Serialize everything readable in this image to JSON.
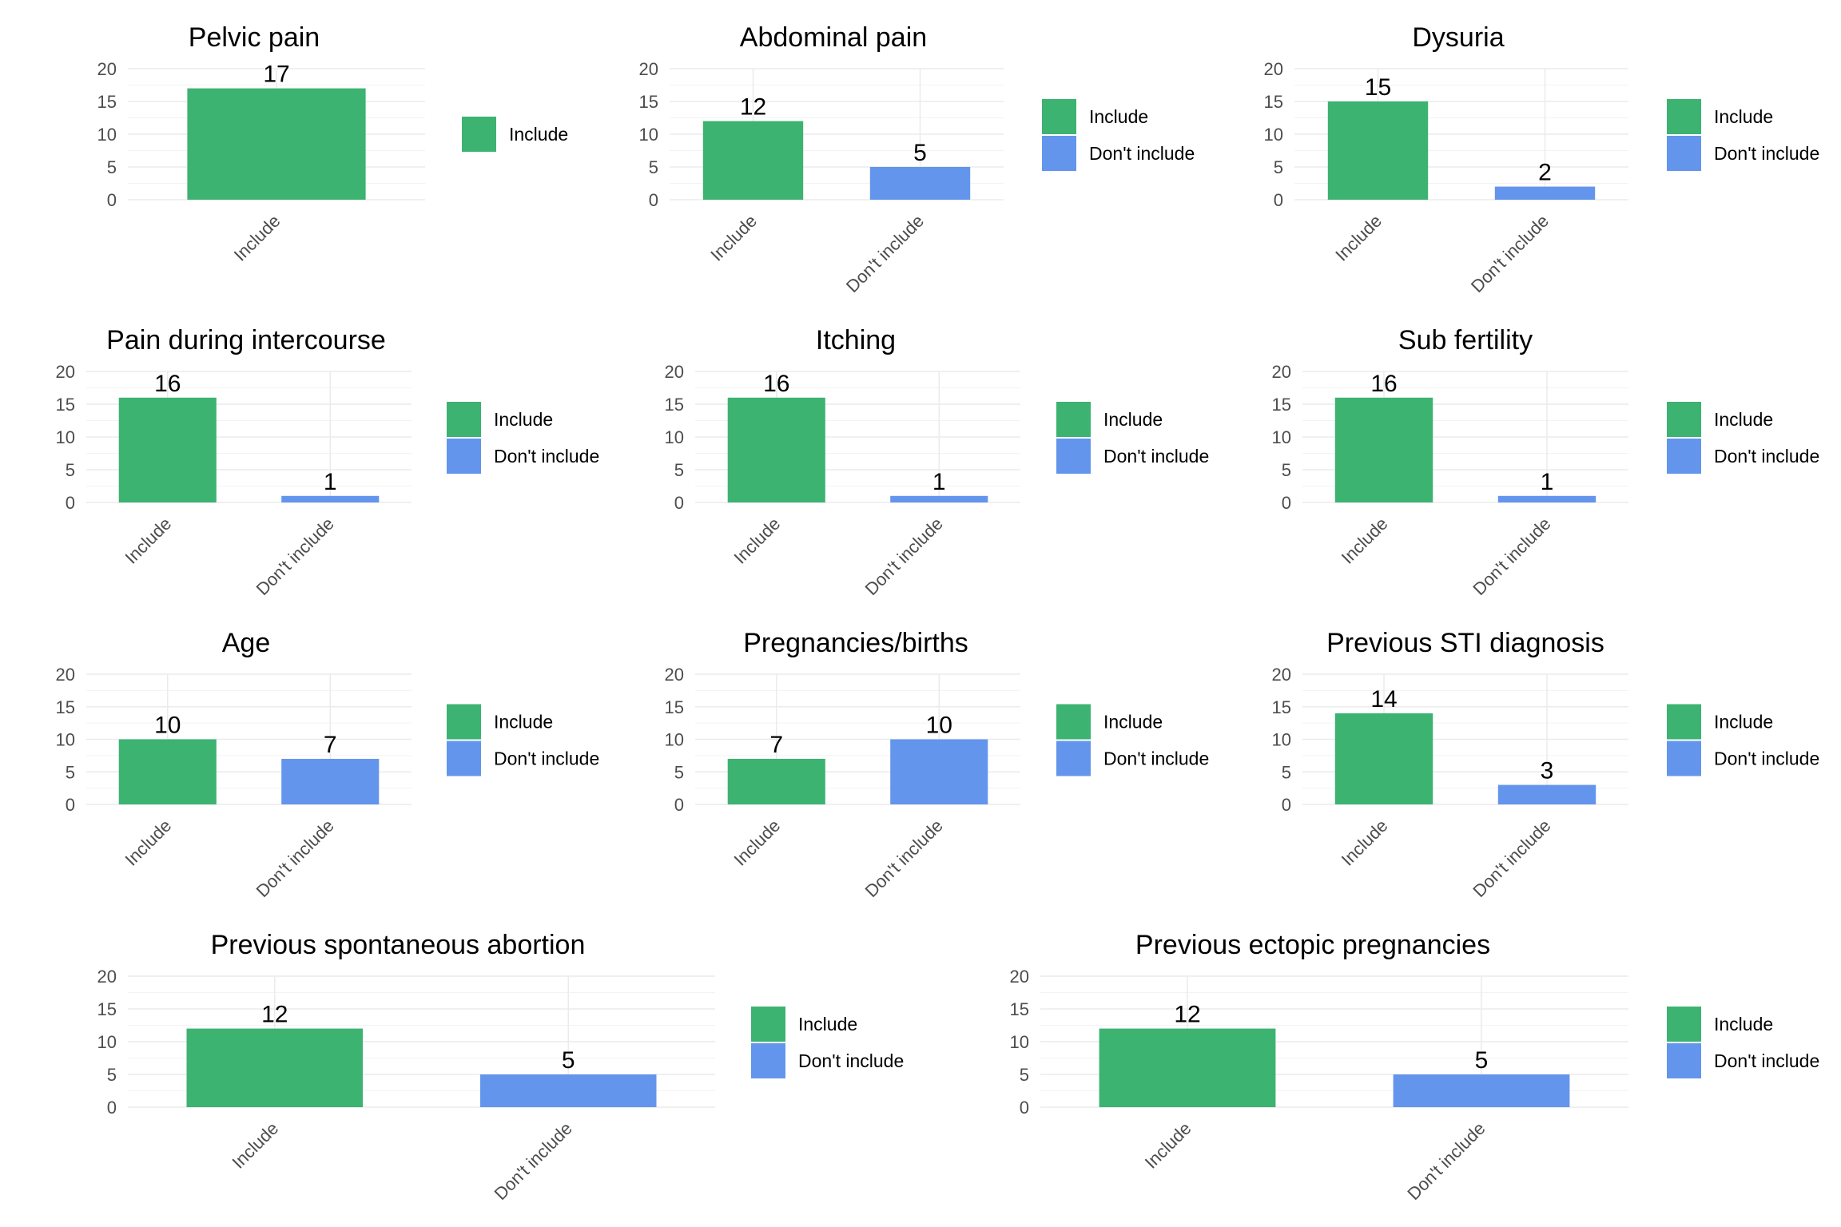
{
  "chart_data": [
    {
      "type": "bar",
      "title": "Pelvic pain",
      "categories": [
        "Include"
      ],
      "values": [
        17
      ],
      "ylim": [
        0,
        20
      ],
      "yticks": [
        "0",
        "5",
        "10",
        "15",
        "20"
      ],
      "legend": [
        "Include"
      ],
      "legend_position": "right",
      "grid": true
    },
    {
      "type": "bar",
      "title": "Abdominal pain",
      "categories": [
        "Include",
        "Don't include"
      ],
      "values": [
        12,
        5
      ],
      "ylim": [
        0,
        20
      ],
      "yticks": [
        "0",
        "5",
        "10",
        "15",
        "20"
      ],
      "legend": [
        "Include",
        "Don't include"
      ],
      "legend_position": "right",
      "grid": true
    },
    {
      "type": "bar",
      "title": "Dysuria",
      "categories": [
        "Include",
        "Don't include"
      ],
      "values": [
        15,
        2
      ],
      "ylim": [
        0,
        20
      ],
      "yticks": [
        "0",
        "5",
        "10",
        "15",
        "20"
      ],
      "legend": [
        "Include",
        "Don't include"
      ],
      "legend_position": "right",
      "grid": true
    },
    {
      "type": "bar",
      "title": "Pain during intercourse",
      "categories": [
        "Include",
        "Don't include"
      ],
      "values": [
        16,
        1
      ],
      "ylim": [
        0,
        20
      ],
      "yticks": [
        "0",
        "5",
        "10",
        "15",
        "20"
      ],
      "legend": [
        "Include",
        "Don't include"
      ],
      "legend_position": "right",
      "grid": true
    },
    {
      "type": "bar",
      "title": "Itching",
      "categories": [
        "Include",
        "Don't include"
      ],
      "values": [
        16,
        1
      ],
      "ylim": [
        0,
        20
      ],
      "yticks": [
        "0",
        "5",
        "10",
        "15",
        "20"
      ],
      "legend": [
        "Include",
        "Don't include"
      ],
      "legend_position": "right",
      "grid": true
    },
    {
      "type": "bar",
      "title": "Sub fertility",
      "categories": [
        "Include",
        "Don't include"
      ],
      "values": [
        16,
        1
      ],
      "ylim": [
        0,
        20
      ],
      "yticks": [
        "0",
        "5",
        "10",
        "15",
        "20"
      ],
      "legend": [
        "Include",
        "Don't include"
      ],
      "legend_position": "right",
      "grid": true
    },
    {
      "type": "bar",
      "title": "Age",
      "categories": [
        "Include",
        "Don't include"
      ],
      "values": [
        10,
        7
      ],
      "ylim": [
        0,
        20
      ],
      "yticks": [
        "0",
        "5",
        "10",
        "15",
        "20"
      ],
      "legend": [
        "Include",
        "Don't include"
      ],
      "legend_position": "right",
      "grid": true
    },
    {
      "type": "bar",
      "title": "Pregnancies/births",
      "categories": [
        "Include",
        "Don't include"
      ],
      "values": [
        7,
        10
      ],
      "ylim": [
        0,
        20
      ],
      "yticks": [
        "0",
        "5",
        "10",
        "15",
        "20"
      ],
      "legend": [
        "Include",
        "Don't include"
      ],
      "legend_position": "right",
      "grid": true
    },
    {
      "type": "bar",
      "title": "Previous STI diagnosis",
      "categories": [
        "Include",
        "Don't include"
      ],
      "values": [
        14,
        3
      ],
      "ylim": [
        0,
        20
      ],
      "yticks": [
        "0",
        "5",
        "10",
        "15",
        "20"
      ],
      "legend": [
        "Include",
        "Don't include"
      ],
      "legend_position": "right",
      "grid": true
    },
    {
      "type": "bar",
      "title": "Previous spontaneous abortion",
      "categories": [
        "Include",
        "Don't include"
      ],
      "values": [
        12,
        5
      ],
      "ylim": [
        0,
        20
      ],
      "yticks": [
        "0",
        "5",
        "10",
        "15",
        "20"
      ],
      "legend": [
        "Include",
        "Don't include"
      ],
      "legend_position": "right",
      "grid": true
    },
    {
      "type": "bar",
      "title": "Previous ectopic pregnancies",
      "categories": [
        "Include",
        "Don't include"
      ],
      "values": [
        12,
        5
      ],
      "ylim": [
        0,
        20
      ],
      "yticks": [
        "0",
        "5",
        "10",
        "15",
        "20"
      ],
      "legend": [
        "Include",
        "Don't include"
      ],
      "legend_position": "right",
      "grid": true
    }
  ],
  "colors": {
    "Include": "#3cb371",
    "Don't include": "#6495ed",
    "grid": "#ebebeb",
    "tick_text": "#4d4d4d",
    "title_text": "#000000"
  }
}
